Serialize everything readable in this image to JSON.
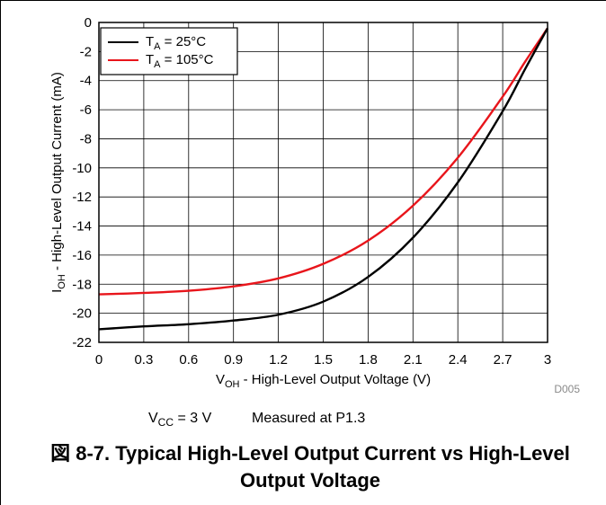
{
  "chart_data": {
    "type": "line",
    "xlabel": {
      "base": "V",
      "sub": "OH",
      "rest": " - High-Level Output Voltage (V)"
    },
    "ylabel": {
      "base": "I",
      "sub": "OH",
      "rest": " - High-Level Output Current (mA)"
    },
    "xlim": [
      0,
      3
    ],
    "ylim": [
      -22,
      0
    ],
    "xticks": [
      "0",
      "0.3",
      "0.6",
      "0.9",
      "1.2",
      "1.5",
      "1.8",
      "2.1",
      "2.4",
      "2.7",
      "3"
    ],
    "yticks": [
      "0",
      "-2",
      "-4",
      "-6",
      "-8",
      "-10",
      "-12",
      "-14",
      "-16",
      "-18",
      "-20",
      "-22"
    ],
    "grid": true,
    "legend_position": "top-left",
    "series": [
      {
        "name": {
          "base": "T",
          "sub": "A",
          "rest": " = 25°C"
        },
        "color": "#000000",
        "x": [
          0,
          0.3,
          0.6,
          0.9,
          1.2,
          1.5,
          1.8,
          2.1,
          2.4,
          2.7,
          2.85,
          3
        ],
        "y": [
          -21.1,
          -20.9,
          -20.75,
          -20.5,
          -20.1,
          -19.2,
          -17.5,
          -14.8,
          -11.0,
          -6.1,
          -3.2,
          -0.4
        ]
      },
      {
        "name": {
          "base": "T",
          "sub": "A",
          "rest": " = 105°C"
        },
        "color": "#e8151b",
        "x": [
          0,
          0.3,
          0.6,
          0.9,
          1.2,
          1.5,
          1.8,
          2.1,
          2.4,
          2.7,
          2.85,
          3
        ],
        "y": [
          -18.7,
          -18.6,
          -18.45,
          -18.15,
          -17.6,
          -16.6,
          -15.0,
          -12.6,
          -9.3,
          -5.1,
          -2.7,
          -0.4
        ]
      }
    ],
    "code": "D005",
    "conditions": {
      "vcc_base": "V",
      "vcc_sub": "CC",
      "vcc_rest": " = 3 V",
      "measured": "Measured at P1.3"
    }
  },
  "caption": "図 8-7. Typical High-Level Output Current vs High-Level Output Voltage"
}
